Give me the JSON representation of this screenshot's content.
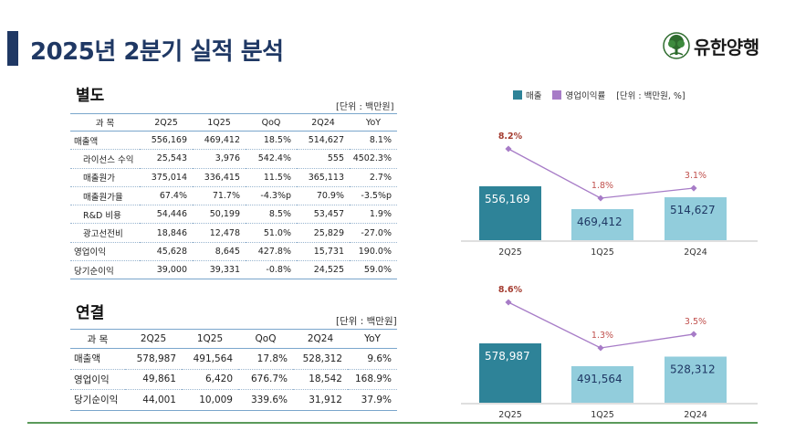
{
  "header": {
    "title": "2025년 2분기 실적 분석",
    "logo_text": "유한양행"
  },
  "separate": {
    "title": "별도",
    "unit": "[단위 : 백만원]",
    "columns": [
      "과  목",
      "2Q25",
      "1Q25",
      "QoQ",
      "2Q24",
      "YoY"
    ],
    "rows": [
      [
        "매출액",
        "556,169",
        "469,412",
        "18.5%",
        "514,627",
        "8.1%"
      ],
      [
        "라이선스 수익",
        "25,543",
        "3,976",
        "542.4%",
        "555",
        "4502.3%"
      ],
      [
        "매출원가",
        "375,014",
        "336,415",
        "11.5%",
        "365,113",
        "2.7%"
      ],
      [
        "매출원가율",
        "67.4%",
        "71.7%",
        "-4.3%p",
        "70.9%",
        "-3.5%p"
      ],
      [
        "R&D 비용",
        "54,446",
        "50,199",
        "8.5%",
        "53,457",
        "1.9%"
      ],
      [
        "광고선전비",
        "18,846",
        "12,478",
        "51.0%",
        "25,829",
        "-27.0%"
      ],
      [
        "영업이익",
        "45,628",
        "8,645",
        "427.8%",
        "15,731",
        "190.0%"
      ],
      [
        "당기순이익",
        "39,000",
        "39,331",
        "-0.8%",
        "24,525",
        "59.0%"
      ]
    ]
  },
  "consolidated": {
    "title": "연결",
    "unit": "[단위 : 백만원]",
    "columns": [
      "과  목",
      "2Q25",
      "1Q25",
      "QoQ",
      "2Q24",
      "YoY"
    ],
    "rows": [
      [
        "매출액",
        "578,987",
        "491,564",
        "17.8%",
        "528,312",
        "9.6%"
      ],
      [
        "영업이익",
        "49,861",
        "6,420",
        "676.7%",
        "18,542",
        "168.9%"
      ],
      [
        "당기순이익",
        "44,001",
        "10,009",
        "339.6%",
        "31,912",
        "37.9%"
      ]
    ]
  },
  "legend": {
    "sales": "매출",
    "margin": "영업이익률",
    "unit": "[단위 : 백만원, %]"
  },
  "colors": {
    "navy": "#1f3864",
    "bar_current": "#2e8398",
    "bar_other": "#92cddc",
    "line": "#a77cc7",
    "current_label": "#a43c30",
    "other_label": "#c0504d"
  },
  "chart_data": [
    {
      "type": "bar",
      "title": "별도",
      "categories": [
        "2Q25",
        "1Q25",
        "2Q24"
      ],
      "series": [
        {
          "name": "매출",
          "values": [
            556169,
            469412,
            514627
          ]
        },
        {
          "name": "영업이익률",
          "type": "line",
          "values": [
            8.2,
            1.8,
            3.1
          ],
          "labels": [
            "8.2%",
            "1.8%",
            "3.1%"
          ]
        }
      ],
      "bar_labels": [
        "556,169",
        "469,412",
        "514,627"
      ]
    },
    {
      "type": "bar",
      "title": "연결",
      "categories": [
        "2Q25",
        "1Q25",
        "2Q24"
      ],
      "series": [
        {
          "name": "매출",
          "values": [
            578987,
            491564,
            528312
          ]
        },
        {
          "name": "영업이익률",
          "type": "line",
          "values": [
            8.6,
            1.3,
            3.5
          ],
          "labels": [
            "8.6%",
            "1.3%",
            "3.5%"
          ]
        }
      ],
      "bar_labels": [
        "578,987",
        "491,564",
        "528,312"
      ]
    }
  ]
}
